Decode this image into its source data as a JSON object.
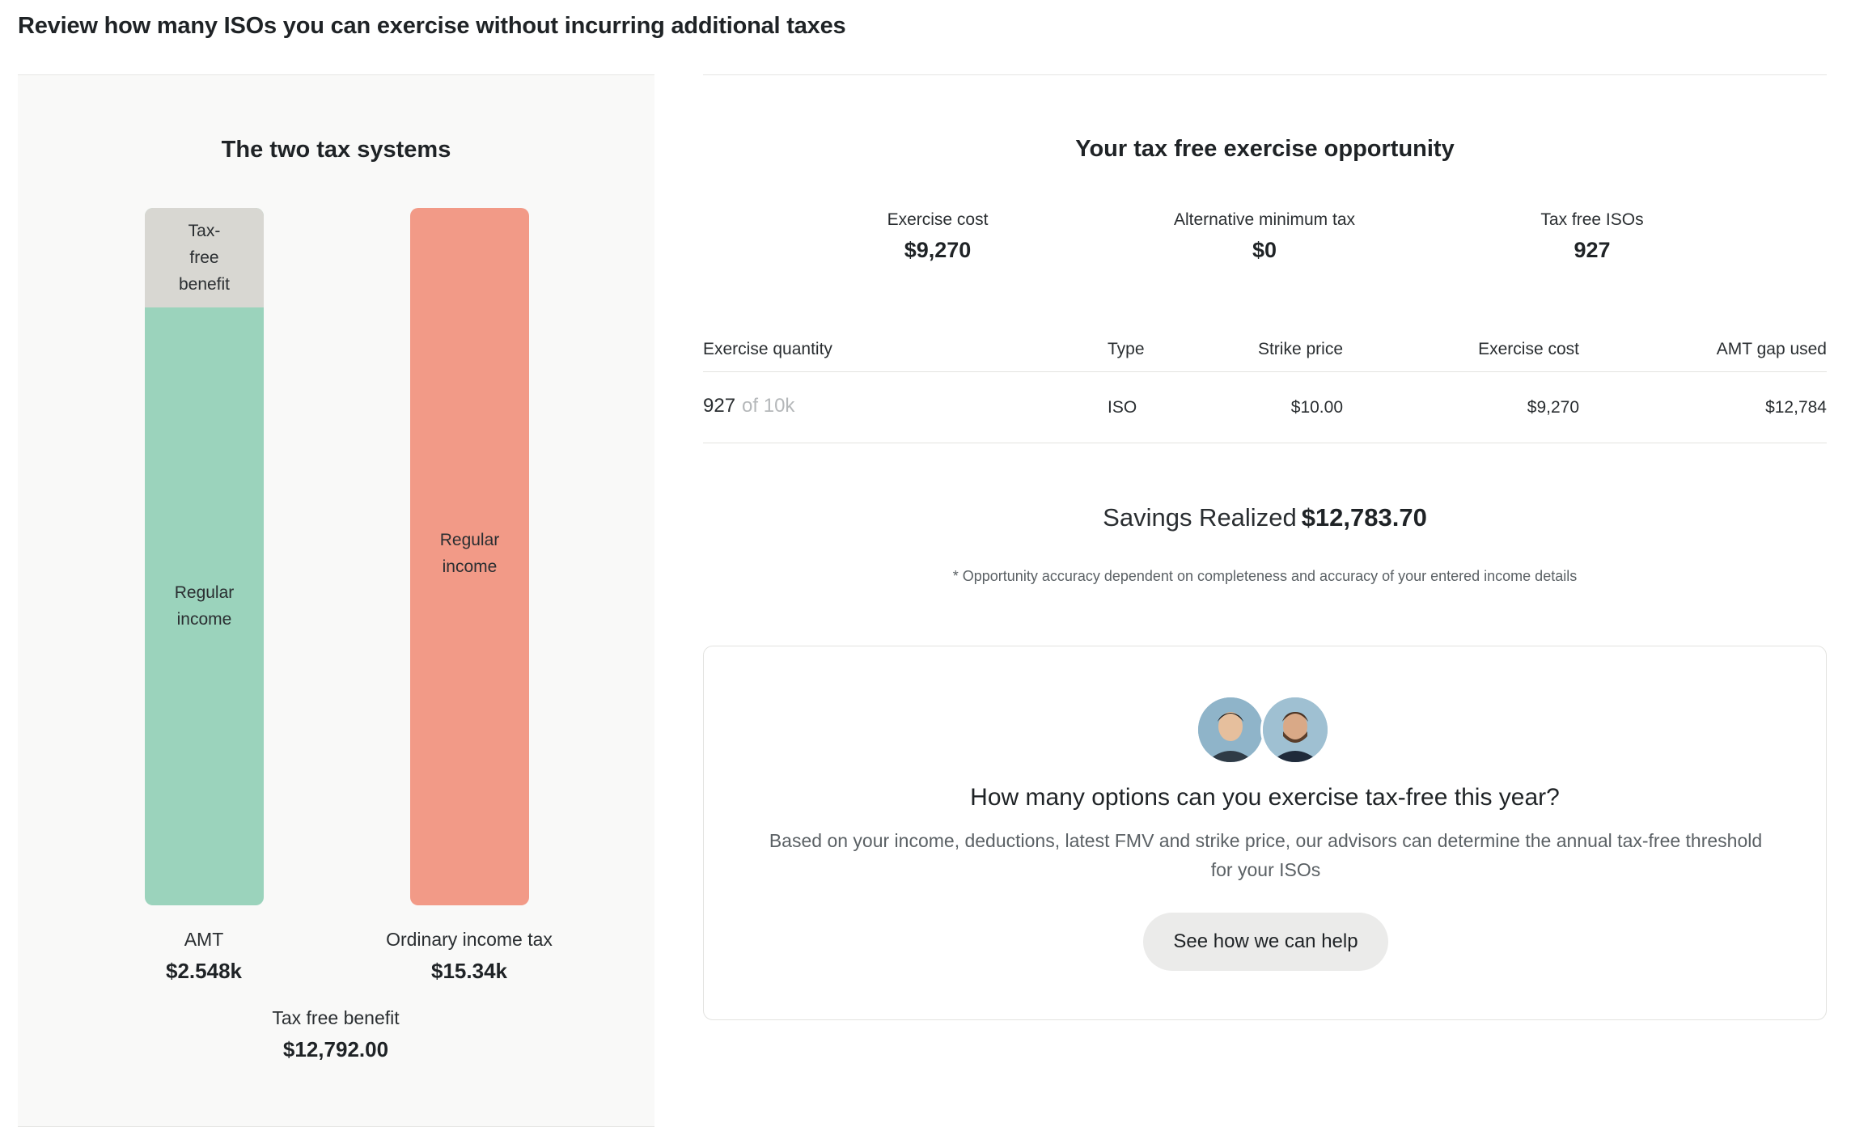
{
  "page": {
    "title": "Review how many ISOs you can exercise without incurring additional taxes"
  },
  "left_panel": {
    "title": "The two tax systems",
    "amt_bar": {
      "top_segment_label": "Tax-\nfree\nbenefit",
      "main_segment_label": "Regular\nincome"
    },
    "ordinary_bar": {
      "label": "Regular\nincome"
    },
    "amt": {
      "label": "AMT",
      "value": "$2.548k"
    },
    "ordinary": {
      "label": "Ordinary income tax",
      "value": "$15.34k"
    },
    "benefit": {
      "label": "Tax free benefit",
      "value": "$12,792.00"
    },
    "colors": {
      "tax_free_benefit": "#d8d7d2",
      "amt_regular_income": "#9bd3bc",
      "ordinary_regular_income": "#f29a87"
    }
  },
  "opportunity": {
    "title": "Your tax free exercise opportunity",
    "metrics": [
      {
        "label": "Exercise cost",
        "value": "$9,270"
      },
      {
        "label": "Alternative minimum tax",
        "value": "$0"
      },
      {
        "label": "Tax free ISOs",
        "value": "927"
      }
    ],
    "table": {
      "headers": [
        "Exercise quantity",
        "Type",
        "Strike price",
        "Exercise cost",
        "AMT gap used"
      ],
      "rows": [
        {
          "quantity": "927",
          "quantity_of": "of 10k",
          "type": "ISO",
          "strike_price": "$10.00",
          "exercise_cost": "$9,270",
          "amt_gap_used": "$12,784"
        }
      ]
    },
    "savings_label": "Savings Realized",
    "savings_value": "$12,783.70",
    "disclaimer": "* Opportunity accuracy dependent on completeness and accuracy of your entered income details"
  },
  "help_card": {
    "title": "How many options can you exercise tax-free this year?",
    "description": "Based on your income, deductions, latest FMV and strike price, our advisors can determine the annual tax-free threshold for your ISOs",
    "button_label": "See how we can help"
  }
}
